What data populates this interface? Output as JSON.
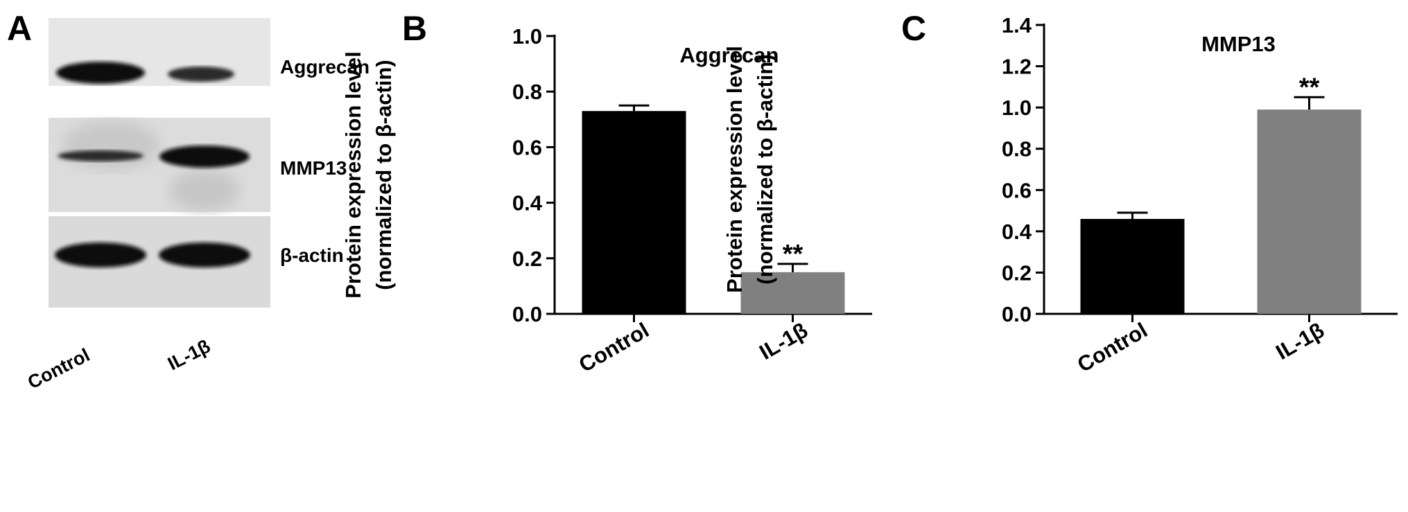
{
  "panels": {
    "A": {
      "letter": "A",
      "band_labels": [
        "Aggrecan",
        "MMP13",
        "β-actin"
      ],
      "lane_labels": [
        "Control",
        "IL-1β"
      ]
    },
    "B": {
      "letter": "B"
    },
    "C": {
      "letter": "C"
    }
  },
  "chart_data": [
    {
      "type": "bar",
      "panel": "B",
      "title": "Aggrecan",
      "categories": [
        "Control",
        "IL-1β"
      ],
      "values": [
        0.73,
        0.15
      ],
      "errors": [
        0.02,
        0.03
      ],
      "annotations": [
        "",
        "**"
      ],
      "bar_colors": [
        "#000000",
        "#808080"
      ],
      "ylabel": [
        "Protein expression level",
        "(normalized to β-actin)"
      ],
      "xlabel": "",
      "ylim": [
        0,
        1.0
      ],
      "yticks": [
        "0.0",
        "0.2",
        "0.4",
        "0.6",
        "0.8",
        "1.0"
      ],
      "grid": false
    },
    {
      "type": "bar",
      "panel": "C",
      "title": "MMP13",
      "categories": [
        "Control",
        "IL-1β"
      ],
      "values": [
        0.46,
        0.99
      ],
      "errors": [
        0.03,
        0.06
      ],
      "annotations": [
        "",
        "**"
      ],
      "bar_colors": [
        "#000000",
        "#808080"
      ],
      "ylabel": [
        "Protein expression level",
        "(normalized to β-actin)"
      ],
      "xlabel": "",
      "ylim": [
        0,
        1.4
      ],
      "yticks": [
        "0.0",
        "0.2",
        "0.4",
        "0.6",
        "0.8",
        "1.0",
        "1.2",
        "1.4"
      ],
      "grid": false
    }
  ]
}
